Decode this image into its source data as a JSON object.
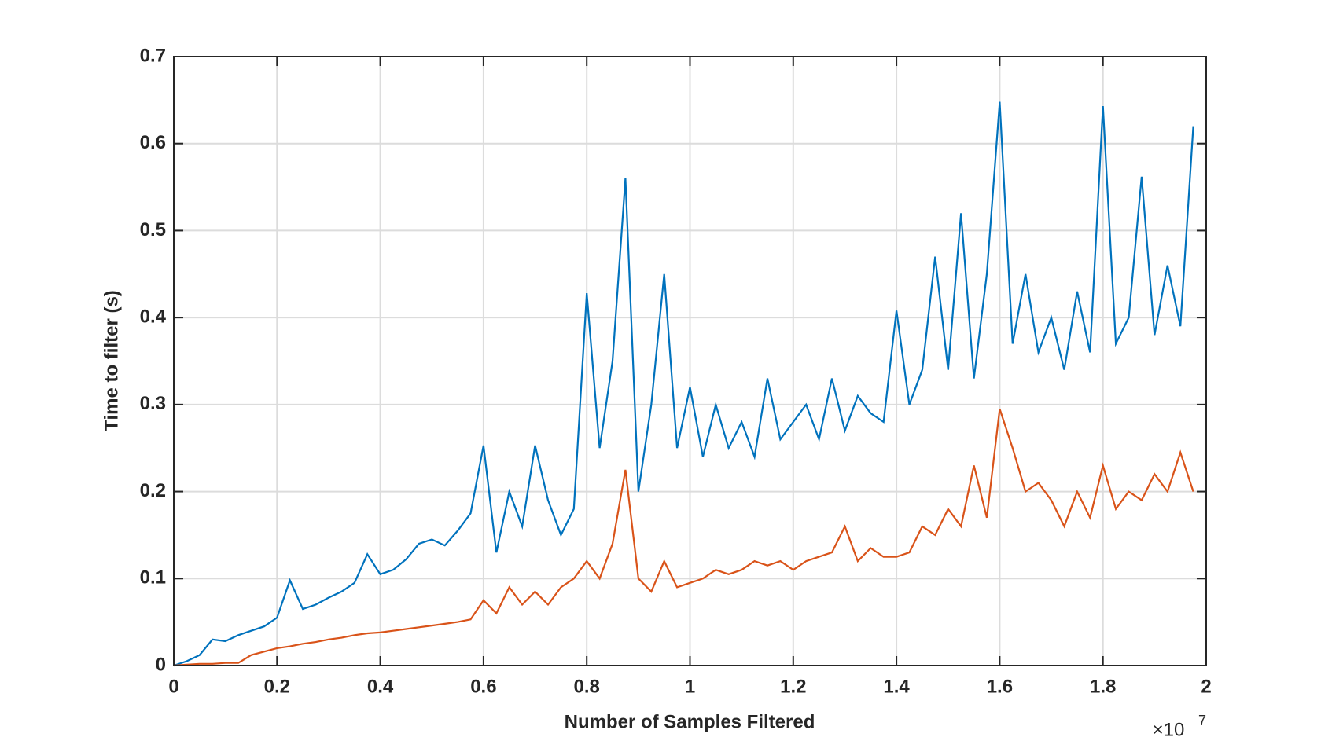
{
  "chart_data": {
    "type": "line",
    "xlabel": "Number of Samples Filtered",
    "ylabel": "Time to filter (s)",
    "x_multiplier": "×10",
    "x_exponent": "7",
    "x": [
      0,
      250000,
      500000,
      750000,
      1000000,
      1250000,
      1500000,
      1750000,
      2000000,
      2250000,
      2500000,
      2750000,
      3000000,
      3250000,
      3500000,
      3750000,
      4000000,
      4250000,
      4500000,
      4750000,
      5000000,
      5250000,
      5500000,
      5750000,
      6000000,
      6250000,
      6500000,
      6750000,
      7000000,
      7250000,
      7500000,
      7750000,
      8000000,
      8250000,
      8500000,
      8750000,
      9000000,
      9250000,
      9500000,
      9750000,
      10000000,
      10250000,
      10500000,
      10750000,
      11000000,
      11250000,
      11500000,
      11750000,
      12000000,
      12250000,
      12500000,
      12750000,
      13000000,
      13250000,
      13500000,
      13750000,
      14000000,
      14250000,
      14500000,
      14750000,
      15000000,
      15250000,
      15500000,
      15750000,
      16000000,
      16250000,
      16500000,
      16750000,
      17000000,
      17250000,
      17500000,
      17750000,
      18000000,
      18250000,
      18500000,
      18750000,
      19000000,
      19250000,
      19500000,
      19750000
    ],
    "series": [
      {
        "color": "#0072bd",
        "values": [
          0,
          0.005,
          0.012,
          0.03,
          0.028,
          0.035,
          0.04,
          0.045,
          0.055,
          0.098,
          0.065,
          0.07,
          0.078,
          0.085,
          0.095,
          0.128,
          0.105,
          0.11,
          0.122,
          0.14,
          0.145,
          0.138,
          0.155,
          0.175,
          0.253,
          0.13,
          0.2,
          0.16,
          0.253,
          0.19,
          0.15,
          0.18,
          0.428,
          0.25,
          0.35,
          0.56,
          0.2,
          0.3,
          0.45,
          0.25,
          0.32,
          0.24,
          0.3,
          0.25,
          0.28,
          0.24,
          0.33,
          0.26,
          0.28,
          0.3,
          0.26,
          0.33,
          0.27,
          0.31,
          0.29,
          0.28,
          0.408,
          0.3,
          0.34,
          0.47,
          0.34,
          0.52,
          0.33,
          0.45,
          0.648,
          0.37,
          0.45,
          0.36,
          0.4,
          0.34,
          0.43,
          0.36,
          0.643,
          0.37,
          0.4,
          0.562,
          0.38,
          0.46,
          0.39,
          0.62
        ]
      },
      {
        "color": "#d95319",
        "values": [
          0,
          0.001,
          0.002,
          0.002,
          0.003,
          0.003,
          0.012,
          0.016,
          0.02,
          0.022,
          0.025,
          0.027,
          0.03,
          0.032,
          0.035,
          0.037,
          0.038,
          0.04,
          0.042,
          0.044,
          0.046,
          0.048,
          0.05,
          0.053,
          0.075,
          0.06,
          0.09,
          0.07,
          0.085,
          0.07,
          0.09,
          0.1,
          0.12,
          0.1,
          0.14,
          0.225,
          0.1,
          0.085,
          0.12,
          0.09,
          0.095,
          0.1,
          0.11,
          0.105,
          0.11,
          0.12,
          0.115,
          0.12,
          0.11,
          0.12,
          0.125,
          0.13,
          0.16,
          0.12,
          0.135,
          0.125,
          0.125,
          0.13,
          0.16,
          0.15,
          0.18,
          0.16,
          0.23,
          0.17,
          0.295,
          0.25,
          0.2,
          0.21,
          0.19,
          0.16,
          0.2,
          0.17,
          0.23,
          0.18,
          0.2,
          0.19,
          0.22,
          0.2,
          0.245,
          0.2
        ]
      }
    ],
    "xlim": [
      0,
      20000000
    ],
    "xticks": [
      0,
      {
        "value": 2000000,
        "label": "0.2"
      },
      {
        "value": 4000000,
        "label": "0.4"
      },
      {
        "value": 6000000,
        "label": "0.6"
      },
      {
        "value": 8000000,
        "label": "0.8"
      },
      {
        "value": 10000000,
        "label": "1"
      },
      {
        "value": 12000000,
        "label": "1.2"
      },
      {
        "value": 14000000,
        "label": "1.4"
      },
      {
        "value": 16000000,
        "label": "1.6"
      },
      {
        "value": 18000000,
        "label": "1.8"
      },
      {
        "value": 20000000,
        "label": "2"
      }
    ],
    "ylim": [
      0,
      0.7
    ],
    "yticks": [
      0,
      0.1,
      0.2,
      0.3,
      0.4,
      0.5,
      0.6,
      0.7
    ],
    "grid": true
  }
}
